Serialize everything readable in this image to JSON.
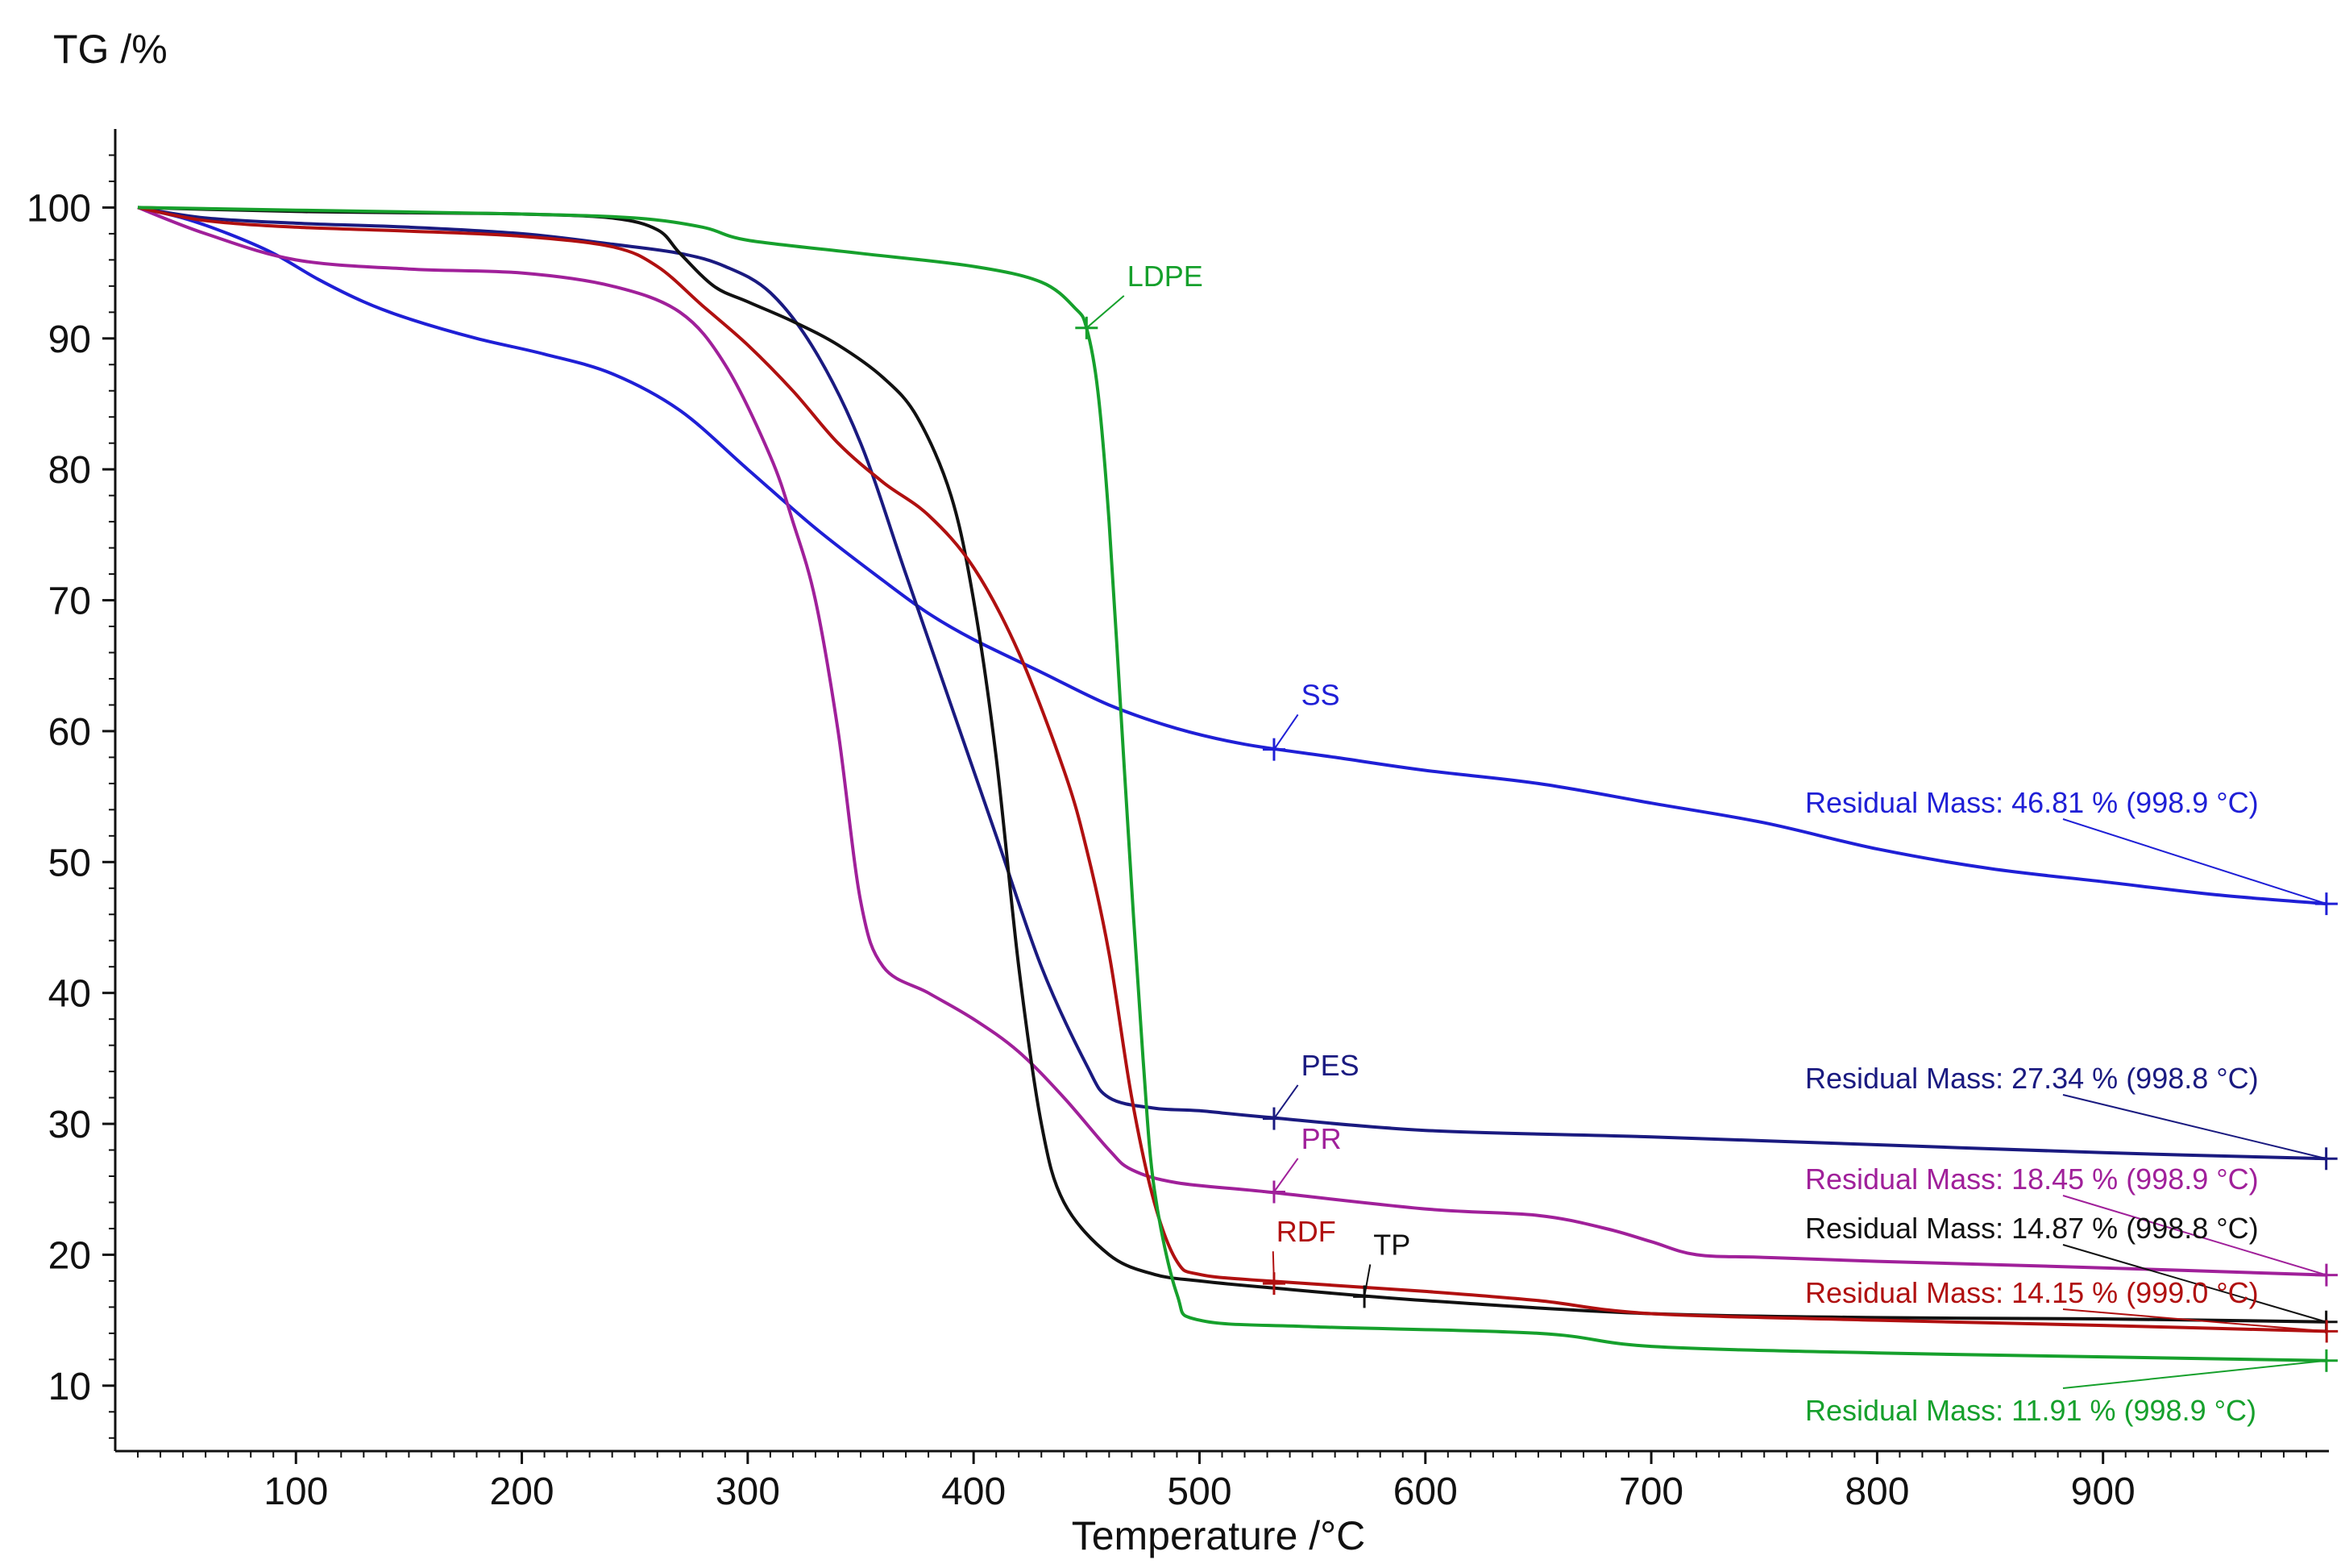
{
  "chart_data": {
    "type": "line",
    "title": "",
    "ylabel": "TG /%",
    "xlabel": "Temperature /°C",
    "xlim": [
      20,
      1000
    ],
    "ylim": [
      5,
      106
    ],
    "xticks": [
      100,
      200,
      300,
      400,
      500,
      600,
      700,
      800,
      900
    ],
    "yticks": [
      10,
      20,
      30,
      40,
      50,
      60,
      70,
      80,
      90,
      100
    ],
    "grid": false,
    "series": [
      {
        "name": "SS",
        "color": "#1f1fd6",
        "x": [
          30,
          50,
          70,
          90,
          110,
          130,
          150,
          180,
          210,
          240,
          270,
          300,
          330,
          360,
          380,
          400,
          430,
          460,
          490,
          520,
          560,
          600,
          650,
          700,
          750,
          800,
          850,
          900,
          950,
          999
        ],
        "y": [
          100,
          99.2,
          98,
          96.5,
          94.5,
          92.8,
          91.5,
          90,
          88.8,
          87.3,
          84.5,
          80,
          75.5,
          71.5,
          69,
          67,
          64.5,
          62,
          60.2,
          59,
          58,
          57,
          56,
          54.5,
          53,
          51,
          49.5,
          48.5,
          47.5,
          46.81
        ],
        "label": "SS",
        "label_x": 545,
        "label_y": 62,
        "marker_x": 533,
        "marker_y": 58.6,
        "residual_text": "Residual Mass: 46.81 % (998.9 °C)",
        "residual_x": 998.9,
        "residual_y": 46.81
      },
      {
        "name": "PES",
        "color": "#1a1a80",
        "x": [
          30,
          60,
          100,
          150,
          200,
          240,
          270,
          290,
          310,
          330,
          350,
          370,
          390,
          410,
          430,
          450,
          460,
          480,
          500,
          530,
          600,
          700,
          800,
          900,
          999
        ],
        "y": [
          100,
          99.2,
          98.8,
          98.5,
          98,
          97.2,
          96.5,
          95.5,
          93.5,
          89,
          82,
          72,
          62,
          52,
          42,
          34.5,
          32,
          31.2,
          31,
          30.5,
          29.5,
          29,
          28.4,
          27.8,
          27.34
        ],
        "label": "PES",
        "label_x": 545,
        "label_y": 33.7,
        "marker_x": 533,
        "marker_y": 30.4,
        "residual_text": "Residual Mass: 27.34 % (998.8 °C)",
        "residual_x": 998.8,
        "residual_y": 27.34
      },
      {
        "name": "PR",
        "color": "#a0209a",
        "x": [
          30,
          60,
          100,
          150,
          200,
          240,
          270,
          290,
          310,
          320,
          330,
          340,
          350,
          360,
          380,
          400,
          420,
          440,
          460,
          470,
          490,
          530,
          600,
          650,
          680,
          700,
          720,
          750,
          800,
          900,
          999
        ],
        "y": [
          100,
          98,
          96,
          95.3,
          95,
          94,
          92,
          88,
          81,
          76,
          70,
          60,
          47,
          42,
          40,
          38,
          35.5,
          32,
          28,
          26.5,
          25.5,
          24.8,
          23.5,
          23,
          22,
          21,
          20,
          19.8,
          19.5,
          19,
          18.45
        ],
        "label": "PR",
        "label_x": 545,
        "label_y": 28.1,
        "marker_x": 533,
        "marker_y": 24.8,
        "residual_text": "Residual Mass: 18.45 % (998.9 °C)",
        "residual_x": 998.9,
        "residual_y": 18.45
      },
      {
        "name": "TP",
        "color": "#111111",
        "x": [
          30,
          100,
          150,
          200,
          240,
          260,
          270,
          285,
          300,
          320,
          340,
          360,
          375,
          390,
          400,
          410,
          420,
          430,
          440,
          460,
          480,
          500,
          530,
          600,
          700,
          800,
          900,
          999
        ],
        "y": [
          100,
          99.7,
          99.6,
          99.5,
          99.2,
          98.3,
          96.5,
          94,
          92.8,
          91.3,
          89.5,
          87,
          84,
          78,
          70,
          58,
          42,
          30,
          24,
          20,
          18.5,
          18,
          17.5,
          16.5,
          15.5,
          15.2,
          15.1,
          14.87
        ],
        "label": "TP",
        "label_x": 577,
        "label_y": 20,
        "marker_x": 573,
        "marker_y": 16.8,
        "residual_text": "Residual Mass: 14.87 % (998.8 °C)",
        "residual_x": 998.8,
        "residual_y": 14.87
      },
      {
        "name": "RDF",
        "color": "#b01010",
        "x": [
          30,
          60,
          100,
          150,
          200,
          240,
          260,
          280,
          300,
          320,
          340,
          360,
          380,
          400,
          420,
          440,
          450,
          460,
          470,
          480,
          490,
          500,
          530,
          600,
          650,
          700,
          800,
          900,
          999
        ],
        "y": [
          100,
          99,
          98.5,
          98.2,
          97.8,
          97,
          95.5,
          92.5,
          89.5,
          86,
          82,
          79,
          76.5,
          72.5,
          66,
          57,
          51,
          43,
          32,
          24,
          19.5,
          18.5,
          18,
          17.2,
          16.5,
          15.5,
          15,
          14.6,
          14.15
        ],
        "label": "RDF",
        "label_x": 534,
        "label_y": 21,
        "marker_x": 533,
        "marker_y": 17.8,
        "residual_text": "Residual Mass: 14.15 % (999.0 °C)",
        "residual_x": 999.0,
        "residual_y": 14.15
      },
      {
        "name": "LDPE",
        "color": "#16a02c",
        "x": [
          30,
          100,
          200,
          250,
          280,
          300,
          350,
          400,
          430,
          445,
          450,
          455,
          460,
          465,
          470,
          475,
          480,
          490,
          500,
          550,
          650,
          700,
          800,
          900,
          999
        ],
        "y": [
          100,
          99.8,
          99.5,
          99.2,
          98.5,
          97.5,
          96.5,
          95.5,
          94.3,
          92.3,
          90.8,
          86,
          76,
          62,
          48,
          35,
          25,
          17,
          15,
          14.5,
          14,
          13,
          12.5,
          12.2,
          11.91
        ],
        "label": "LDPE",
        "label_x": 468,
        "label_y": 94,
        "marker_x": 450,
        "marker_y": 90.8,
        "residual_text": "Residual Mass: 11.91 % (998.9 °C)",
        "residual_x": 998.9,
        "residual_y": 11.91
      }
    ]
  }
}
